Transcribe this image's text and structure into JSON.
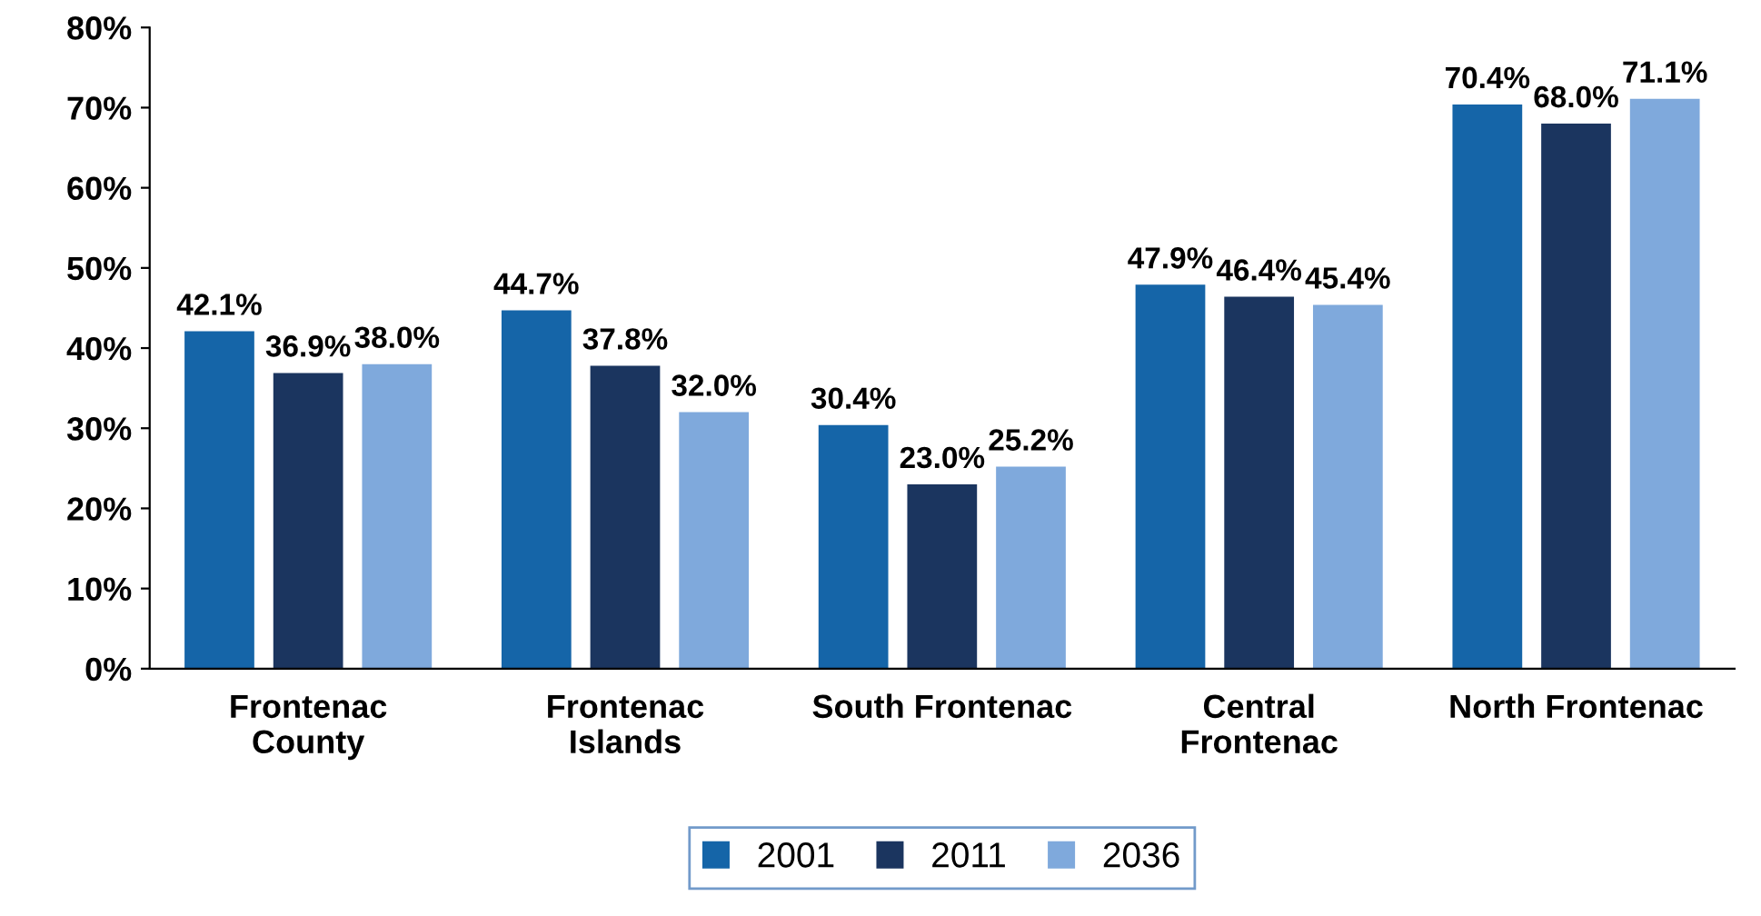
{
  "chart_data": {
    "type": "bar",
    "categories": [
      "Frontenac\nCounty",
      "Frontenac\nIslands",
      "South Frontenac",
      "Central\nFrontenac",
      "North Frontenac"
    ],
    "series": [
      {
        "name": "2001",
        "color": "#1565a8",
        "values": [
          42.1,
          44.7,
          30.4,
          47.9,
          70.4
        ],
        "value_labels": [
          "42.1%",
          "44.7%",
          "30.4%",
          "47.9%",
          "70.4%"
        ]
      },
      {
        "name": "2011",
        "color": "#1b355f",
        "values": [
          36.9,
          37.8,
          23.0,
          46.4,
          68.0
        ],
        "value_labels": [
          "36.9%",
          "37.8%",
          "23.0%",
          "46.4%",
          "68.0%"
        ]
      },
      {
        "name": "2036",
        "color": "#7fa9dc",
        "values": [
          38.0,
          32.0,
          25.2,
          45.4,
          71.1
        ],
        "value_labels": [
          "38.0%",
          "32.0%",
          "25.2%",
          "45.4%",
          "71.1%"
        ]
      }
    ],
    "ylim": [
      0,
      80
    ],
    "yticks": [
      {
        "value": 0,
        "label": "0%"
      },
      {
        "value": 10,
        "label": "10%"
      },
      {
        "value": 20,
        "label": "20%"
      },
      {
        "value": 30,
        "label": "30%"
      },
      {
        "value": 40,
        "label": "40%"
      },
      {
        "value": 50,
        "label": "50%"
      },
      {
        "value": 60,
        "label": "60%"
      },
      {
        "value": 70,
        "label": "70%"
      },
      {
        "value": 80,
        "label": "80%"
      }
    ],
    "grid": false,
    "legend": "bottom"
  }
}
